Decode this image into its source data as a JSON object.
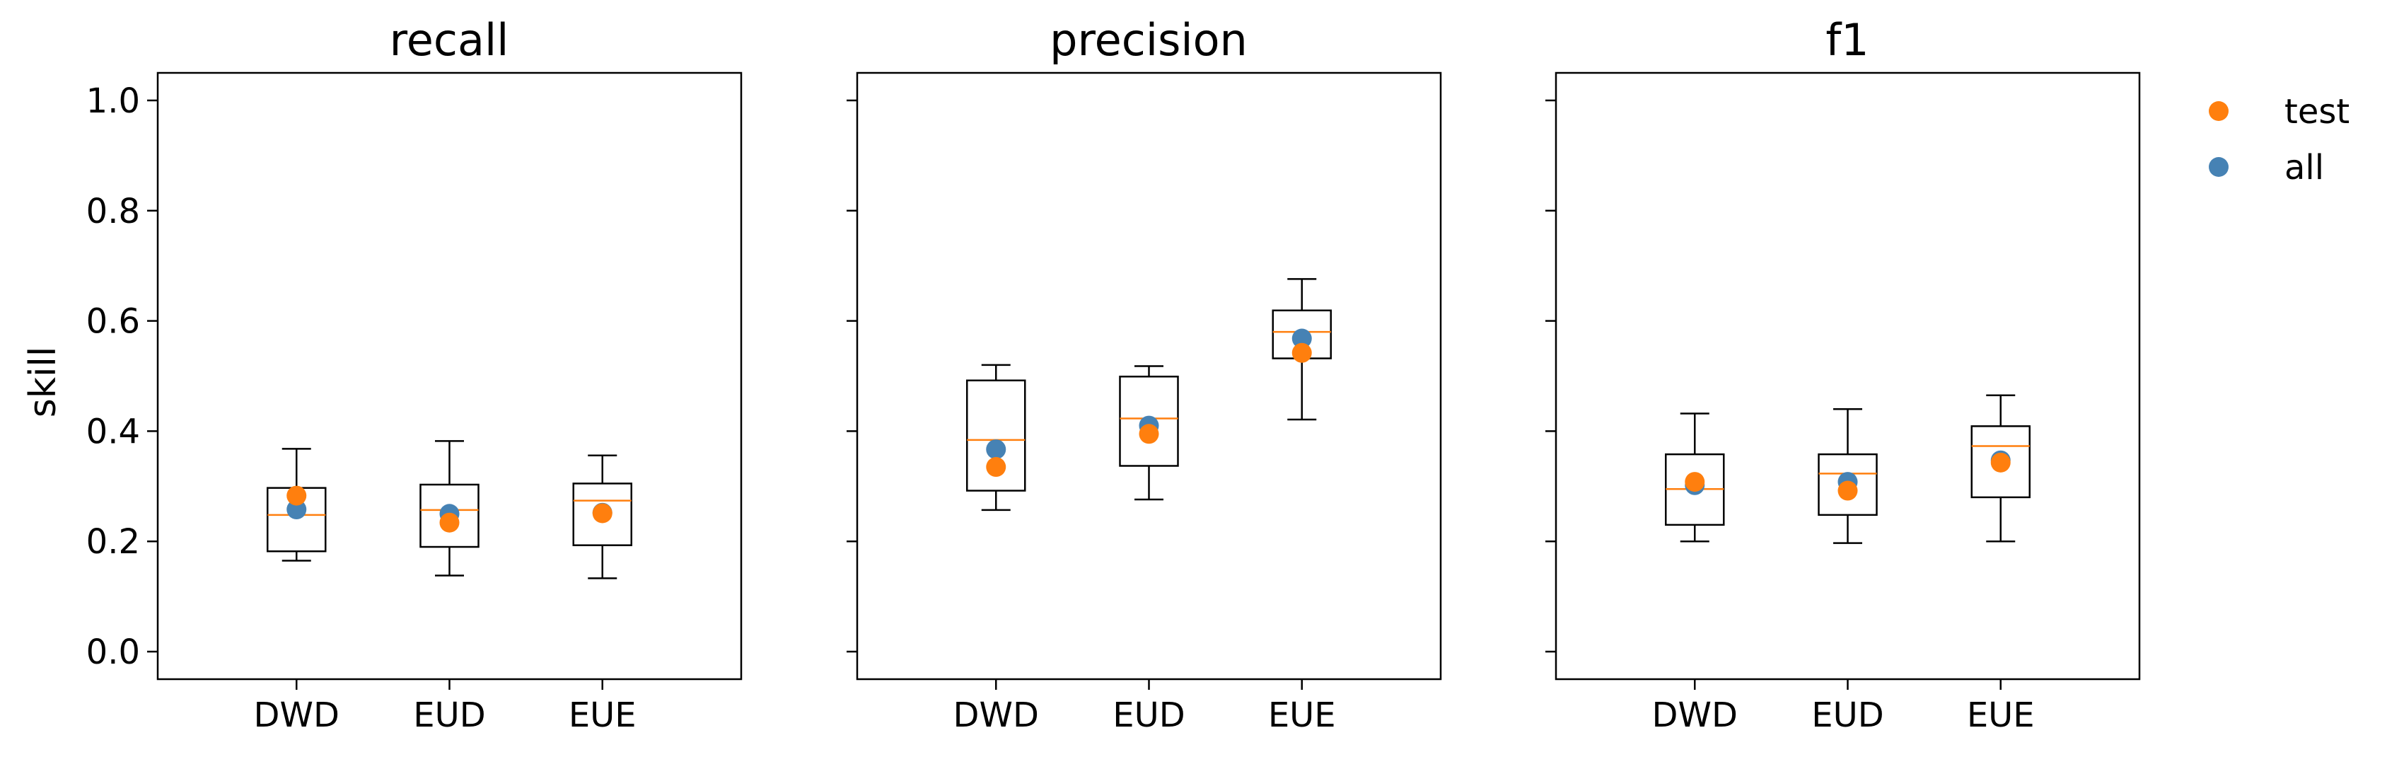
{
  "chart_data": {
    "type": "box",
    "ylabel": "skill",
    "ylim": [
      -0.05,
      1.05
    ],
    "yticks": [
      0.0,
      0.2,
      0.4,
      0.6,
      0.8,
      1.0
    ],
    "ytick_labels": [
      "0.0",
      "0.2",
      "0.4",
      "0.6",
      "0.8",
      "1.0"
    ],
    "categories": [
      "DWD",
      "EUD",
      "EUE"
    ],
    "legend": {
      "placement": "outside-top-right",
      "entries": [
        {
          "name": "test",
          "color": "#ff7f0e"
        },
        {
          "name": "all",
          "color": "#4682b4"
        }
      ]
    },
    "colors": {
      "median": "#ff7f0e",
      "test": "#ff7f0e",
      "all": "#4682b4",
      "box": "#000000"
    },
    "panels": [
      {
        "title": "recall",
        "boxes": [
          {
            "category": "DWD",
            "whisker_low": 0.165,
            "q1": 0.182,
            "median": 0.248,
            "q3": 0.297,
            "whisker_high": 0.368,
            "test": 0.283,
            "all": 0.258
          },
          {
            "category": "EUD",
            "whisker_low": 0.138,
            "q1": 0.19,
            "median": 0.257,
            "q3": 0.303,
            "whisker_high": 0.382,
            "test": 0.234,
            "all": 0.25
          },
          {
            "category": "EUE",
            "whisker_low": 0.133,
            "q1": 0.193,
            "median": 0.274,
            "q3": 0.305,
            "whisker_high": 0.356,
            "test": 0.251,
            "all": 0.252
          }
        ]
      },
      {
        "title": "precision",
        "boxes": [
          {
            "category": "DWD",
            "whisker_low": 0.257,
            "q1": 0.292,
            "median": 0.384,
            "q3": 0.492,
            "whisker_high": 0.52,
            "test": 0.335,
            "all": 0.367
          },
          {
            "category": "EUD",
            "whisker_low": 0.276,
            "q1": 0.337,
            "median": 0.423,
            "q3": 0.499,
            "whisker_high": 0.518,
            "test": 0.395,
            "all": 0.41
          },
          {
            "category": "EUE",
            "whisker_low": 0.421,
            "q1": 0.532,
            "median": 0.58,
            "q3": 0.619,
            "whisker_high": 0.676,
            "test": 0.542,
            "all": 0.568
          }
        ]
      },
      {
        "title": "f1",
        "boxes": [
          {
            "category": "DWD",
            "whisker_low": 0.2,
            "q1": 0.23,
            "median": 0.295,
            "q3": 0.358,
            "whisker_high": 0.432,
            "test": 0.308,
            "all": 0.302
          },
          {
            "category": "EUD",
            "whisker_low": 0.197,
            "q1": 0.248,
            "median": 0.323,
            "q3": 0.358,
            "whisker_high": 0.44,
            "test": 0.292,
            "all": 0.308
          },
          {
            "category": "EUE",
            "whisker_low": 0.2,
            "q1": 0.28,
            "median": 0.373,
            "q3": 0.409,
            "whisker_high": 0.465,
            "test": 0.343,
            "all": 0.347
          }
        ]
      }
    ]
  }
}
